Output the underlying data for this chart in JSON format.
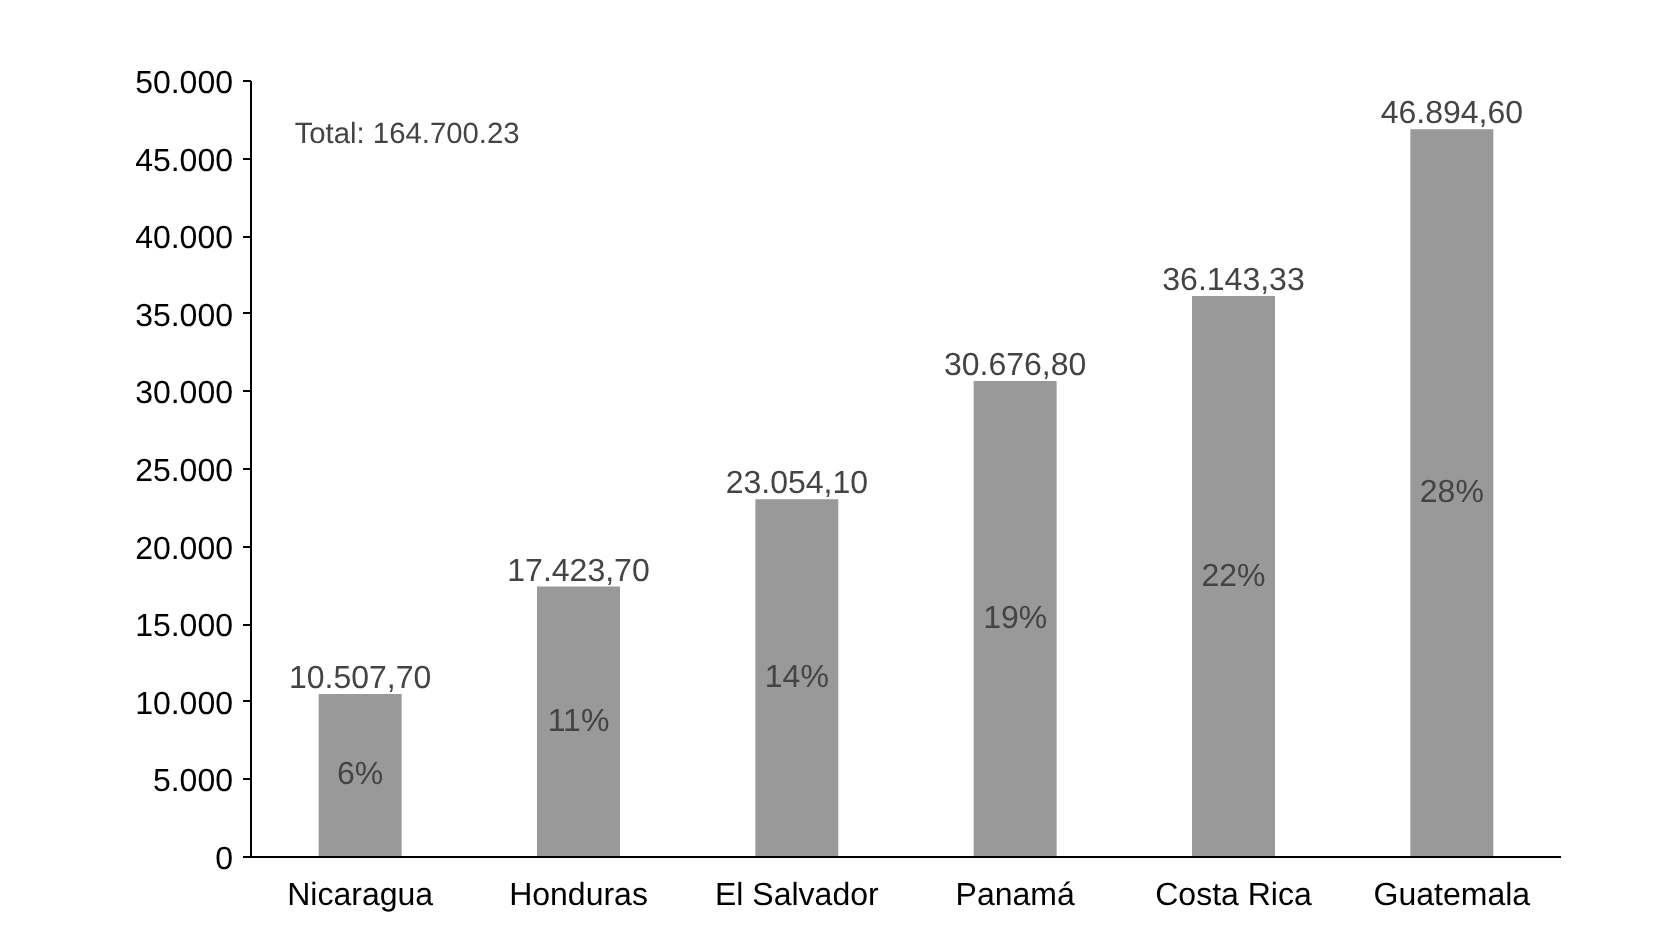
{
  "chart_data": {
    "type": "bar",
    "categories": [
      "Nicaragua",
      "Honduras",
      "El Salvador",
      "Panamá",
      "Costa Rica",
      "Guatemala"
    ],
    "values": [
      10507.7,
      17423.7,
      23054.1,
      30676.8,
      36143.33,
      46894.6
    ],
    "color": "#999999",
    "value_labels": [
      "10.507,70",
      "17.423,70",
      "23.054,10",
      "30.676,80",
      "36.143,33",
      "46.894,60"
    ],
    "ylim": [
      0,
      50000
    ],
    "yticks": [
      {
        "value": 0,
        "label": "0"
      },
      {
        "value": 5000,
        "label": "5.000"
      },
      {
        "value": 10000,
        "label": "10.000"
      },
      {
        "value": 15000,
        "label": "15.000"
      },
      {
        "value": 20000,
        "label": "20.000"
      },
      {
        "value": 25000,
        "label": "25.000"
      },
      {
        "value": 30000,
        "label": "30.000"
      },
      {
        "value": 35000,
        "label": "35.000"
      },
      {
        "value": 40000,
        "label": "40.000"
      },
      {
        "value": 45000,
        "label": "45.000"
      },
      {
        "value": 50000,
        "label": "50.000"
      }
    ],
    "grid": false,
    "annotations": [
      "Total: 164.700.23",
      "6%",
      "11%",
      "14%",
      "19%",
      "22%",
      "28%"
    ]
  }
}
